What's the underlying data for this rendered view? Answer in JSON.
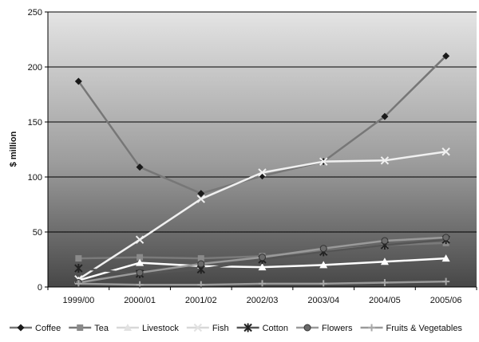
{
  "chart_data": {
    "type": "line",
    "title": "",
    "xlabel": "",
    "ylabel": "$ million",
    "ylim": [
      0,
      250
    ],
    "yticks": [
      0,
      50,
      100,
      150,
      200,
      250
    ],
    "grid": true,
    "legend": "bottom",
    "categories": [
      "1999/00",
      "2000/01",
      "2001/02",
      "2002/03",
      "2003/04",
      "2004/05",
      "2005/06"
    ],
    "series": [
      {
        "name": "Coffee",
        "marker": "diamond",
        "line_color": "#777777",
        "marker_color": "#1a1a1a",
        "values": [
          187,
          109,
          85,
          101,
          114,
          155,
          210
        ]
      },
      {
        "name": "Tea",
        "marker": "square",
        "line_color": "#7a7a7a",
        "marker_color": "#8a8a8a",
        "values": [
          26,
          27,
          26,
          28,
          33,
          38,
          40
        ]
      },
      {
        "name": "Livestock",
        "marker": "triangle",
        "line_color": "#ffffff",
        "marker_color": "#ffffff",
        "values": [
          6,
          22,
          19,
          18,
          20,
          23,
          26
        ]
      },
      {
        "name": "Fish",
        "marker": "x",
        "line_color": "#f0f0f0",
        "marker_color": "#f0f0f0",
        "values": [
          7,
          43,
          80,
          104,
          114,
          115,
          123
        ]
      },
      {
        "name": "Cotton",
        "marker": "star",
        "line_color": "#555555",
        "marker_color": "#222222",
        "values": [
          17,
          12,
          16,
          25,
          32,
          38,
          43
        ]
      },
      {
        "name": "Flowers",
        "marker": "circle",
        "line_color": "#9a9a9a",
        "marker_color": "#6a6a6a",
        "values": [
          4,
          13,
          21,
          27,
          35,
          42,
          45
        ]
      },
      {
        "name": "Fruits & Vegetables",
        "marker": "plus",
        "line_color": "#9a9a9a",
        "marker_color": "#a8a8a8",
        "values": [
          3,
          2,
          2,
          3,
          3,
          4,
          5
        ]
      }
    ]
  }
}
